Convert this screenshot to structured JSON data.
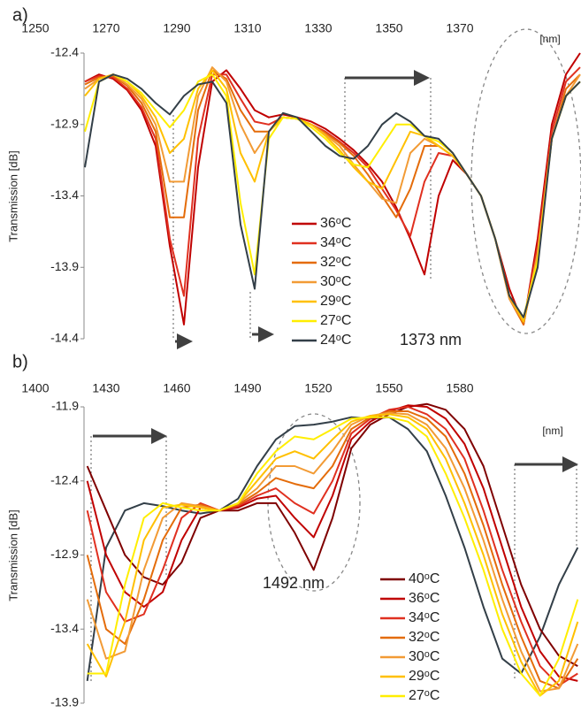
{
  "chart_data": [
    {
      "type": "line",
      "panel_label": "a)",
      "xlabel": "[nm]",
      "ylabel": "Transmission [dB]",
      "annotation": "1373 nm",
      "xlim": [
        1250,
        1404
      ],
      "xticks": [
        1250,
        1270,
        1290,
        1310,
        1330,
        1350,
        1370
      ],
      "ylim": [
        -14.4,
        -12.4
      ],
      "yticks": [
        -12.4,
        -12.9,
        -13.4,
        -13.9,
        -14.4
      ],
      "x": [
        1264,
        1268,
        1272,
        1276,
        1280,
        1284,
        1288,
        1292,
        1296,
        1300,
        1304,
        1308,
        1312,
        1316,
        1320,
        1324,
        1328,
        1332,
        1336,
        1340,
        1344,
        1348,
        1352,
        1356,
        1360,
        1364,
        1368,
        1372,
        1376,
        1380,
        1384,
        1388,
        1392,
        1396,
        1400,
        1404
      ],
      "series": [
        {
          "name": "36ᵒC",
          "color": "#c00000",
          "values": [
            -12.6,
            -12.55,
            -12.58,
            -12.66,
            -12.8,
            -13.05,
            -13.75,
            -14.3,
            -13.2,
            -12.6,
            -12.52,
            -12.65,
            -12.8,
            -12.85,
            -12.83,
            -12.85,
            -12.88,
            -12.93,
            -13.0,
            -13.08,
            -13.18,
            -13.3,
            -13.48,
            -13.7,
            -13.95,
            -13.4,
            -13.15,
            -13.25,
            -13.4,
            -13.7,
            -14.05,
            -14.3,
            -13.7,
            -12.9,
            -12.55,
            -12.4
          ]
        },
        {
          "name": "34ᵒC",
          "color": "#e03020",
          "values": [
            -12.6,
            -12.56,
            -12.57,
            -12.65,
            -12.78,
            -13.0,
            -13.7,
            -14.1,
            -13.0,
            -12.55,
            -12.55,
            -12.72,
            -12.88,
            -12.9,
            -12.85,
            -12.86,
            -12.9,
            -12.95,
            -13.02,
            -13.1,
            -13.2,
            -13.35,
            -13.5,
            -13.68,
            -13.3,
            -13.1,
            -13.12,
            -13.25,
            -13.4,
            -13.7,
            -14.1,
            -14.3,
            -13.75,
            -12.95,
            -12.6,
            -12.5
          ]
        },
        {
          "name": "32ᵒC",
          "color": "#e46c0a",
          "values": [
            -12.62,
            -12.57,
            -12.56,
            -12.63,
            -12.75,
            -12.95,
            -13.55,
            -13.55,
            -12.8,
            -12.52,
            -12.58,
            -12.8,
            -12.95,
            -12.95,
            -12.85,
            -12.86,
            -12.9,
            -12.96,
            -13.03,
            -13.12,
            -13.25,
            -13.4,
            -13.55,
            -13.35,
            -13.05,
            -13.05,
            -13.12,
            -13.25,
            -13.4,
            -13.7,
            -14.12,
            -14.3,
            -13.8,
            -13.0,
            -12.65,
            -12.55
          ]
        },
        {
          "name": "30ᵒC",
          "color": "#f29b35",
          "values": [
            -12.65,
            -12.58,
            -12.55,
            -12.62,
            -12.72,
            -12.9,
            -13.3,
            -13.3,
            -12.7,
            -12.5,
            -12.6,
            -12.9,
            -13.1,
            -12.95,
            -12.85,
            -12.86,
            -12.9,
            -12.97,
            -13.05,
            -13.18,
            -13.3,
            -13.42,
            -13.45,
            -13.1,
            -13.0,
            -13.05,
            -13.12,
            -13.25,
            -13.4,
            -13.7,
            -14.12,
            -14.28,
            -13.8,
            -13.0,
            -12.7,
            -12.55
          ]
        },
        {
          "name": "29ᵒC",
          "color": "#ffc000",
          "values": [
            -12.7,
            -12.58,
            -12.55,
            -12.6,
            -12.7,
            -12.85,
            -13.1,
            -13.0,
            -12.65,
            -12.52,
            -12.65,
            -13.1,
            -13.3,
            -12.95,
            -12.85,
            -12.86,
            -12.9,
            -12.98,
            -13.08,
            -13.2,
            -13.3,
            -13.35,
            -13.15,
            -12.95,
            -12.98,
            -13.05,
            -13.12,
            -13.25,
            -13.4,
            -13.7,
            -14.1,
            -14.28,
            -13.85,
            -13.0,
            -12.7,
            -12.6
          ]
        },
        {
          "name": "27ᵒC",
          "color": "#ffee00",
          "values": [
            -12.95,
            -12.6,
            -12.55,
            -12.6,
            -12.68,
            -12.8,
            -12.92,
            -12.8,
            -12.6,
            -12.55,
            -12.7,
            -13.45,
            -13.95,
            -13.0,
            -12.85,
            -12.86,
            -12.92,
            -13.0,
            -13.1,
            -13.18,
            -13.2,
            -13.05,
            -12.9,
            -12.9,
            -12.98,
            -13.02,
            -13.1,
            -13.25,
            -13.4,
            -13.7,
            -14.1,
            -14.25,
            -13.85,
            -13.0,
            -12.7,
            -12.6
          ]
        },
        {
          "name": "24ᵒC",
          "color": "#333f48",
          "values": [
            -13.2,
            -12.6,
            -12.55,
            -12.58,
            -12.65,
            -12.75,
            -12.83,
            -12.7,
            -12.62,
            -12.6,
            -12.75,
            -13.6,
            -14.05,
            -12.95,
            -12.82,
            -12.85,
            -12.95,
            -13.05,
            -13.12,
            -13.14,
            -13.05,
            -12.9,
            -12.82,
            -12.88,
            -12.98,
            -13.0,
            -13.1,
            -13.25,
            -13.4,
            -13.7,
            -14.1,
            -14.25,
            -13.9,
            -13.0,
            -12.7,
            -12.6
          ]
        }
      ]
    },
    {
      "type": "line",
      "panel_label": "b)",
      "xlabel": "[nm]",
      "ylabel": "Transmission [dB]",
      "annotation": "1492 nm",
      "xlim": [
        1400,
        1631
      ],
      "xticks": [
        1400,
        1430,
        1460,
        1490,
        1520,
        1550,
        1580
      ],
      "ylim": [
        -13.9,
        -11.9
      ],
      "yticks": [
        -11.9,
        -12.4,
        -12.9,
        -13.4,
        -13.9
      ],
      "x": [
        1422,
        1430,
        1438,
        1446,
        1454,
        1462,
        1470,
        1478,
        1486,
        1494,
        1502,
        1510,
        1518,
        1526,
        1534,
        1542,
        1550,
        1558,
        1566,
        1574,
        1582,
        1590,
        1598,
        1606,
        1614,
        1622,
        1630
      ],
      "series": [
        {
          "color": "#333f48",
          "values": [
            -13.75,
            -12.85,
            -12.6,
            -12.55,
            -12.57,
            -12.6,
            -12.62,
            -12.6,
            -12.52,
            -12.3,
            -12.12,
            -12.03,
            -12.02,
            -12.0,
            -11.97,
            -11.98,
            -11.97,
            -12.05,
            -12.2,
            -12.5,
            -12.85,
            -13.25,
            -13.6,
            -13.7,
            -13.45,
            -13.1,
            -12.85
          ]
        },
        {
          "name": "40ᵒC",
          "color": "#7f0000",
          "values": [
            -12.3,
            -12.6,
            -12.9,
            -13.05,
            -13.1,
            -12.95,
            -12.65,
            -12.6,
            -12.6,
            -12.55,
            -12.55,
            -12.75,
            -13.0,
            -12.65,
            -12.18,
            -12.02,
            -11.95,
            -11.9,
            -11.88,
            -11.92,
            -12.05,
            -12.3,
            -12.7,
            -13.1,
            -13.4,
            -13.58,
            -13.65
          ]
        },
        {
          "name": "36ᵒC",
          "color": "#c00000",
          "values": [
            -12.4,
            -12.9,
            -13.15,
            -13.25,
            -13.15,
            -12.8,
            -12.58,
            -12.6,
            -12.58,
            -12.52,
            -12.5,
            -12.65,
            -12.78,
            -12.5,
            -12.12,
            -12.0,
            -11.93,
            -11.89,
            -11.9,
            -11.98,
            -12.15,
            -12.45,
            -12.85,
            -13.25,
            -13.55,
            -13.72,
            -13.75
          ]
        },
        {
          "name": "34ᵒC",
          "color": "#e03020",
          "values": [
            -12.6,
            -13.15,
            -13.35,
            -13.3,
            -13.0,
            -12.65,
            -12.55,
            -12.6,
            -12.57,
            -12.5,
            -12.45,
            -12.55,
            -12.62,
            -12.4,
            -12.08,
            -11.98,
            -11.92,
            -11.9,
            -11.95,
            -12.05,
            -12.25,
            -12.6,
            -13.0,
            -13.35,
            -13.65,
            -13.78,
            -13.7
          ]
        },
        {
          "name": "32ᵒC",
          "color": "#e46c0a",
          "values": [
            -12.9,
            -13.4,
            -13.5,
            -13.2,
            -12.8,
            -12.58,
            -12.56,
            -12.6,
            -12.56,
            -12.48,
            -12.38,
            -12.42,
            -12.45,
            -12.3,
            -12.05,
            -11.97,
            -11.93,
            -11.93,
            -11.98,
            -12.1,
            -12.35,
            -12.7,
            -13.1,
            -13.45,
            -13.75,
            -13.8,
            -13.6
          ]
        },
        {
          "name": "30ᵒC",
          "color": "#f29b35",
          "values": [
            -13.2,
            -13.6,
            -13.55,
            -13.0,
            -12.65,
            -12.55,
            -12.57,
            -12.6,
            -12.55,
            -12.45,
            -12.3,
            -12.3,
            -12.35,
            -12.2,
            -12.02,
            -11.96,
            -11.94,
            -11.95,
            -12.02,
            -12.18,
            -12.45,
            -12.8,
            -13.2,
            -13.55,
            -13.82,
            -13.8,
            -13.5
          ]
        },
        {
          "name": "29ᵒC",
          "color": "#ffc000",
          "values": [
            -13.5,
            -13.72,
            -13.35,
            -12.8,
            -12.58,
            -12.56,
            -12.58,
            -12.6,
            -12.55,
            -12.4,
            -12.25,
            -12.2,
            -12.25,
            -12.12,
            -12.0,
            -11.96,
            -11.95,
            -11.97,
            -12.05,
            -12.25,
            -12.55,
            -12.9,
            -13.3,
            -13.62,
            -13.85,
            -13.75,
            -13.35
          ]
        },
        {
          "name": "27ᵒC",
          "color": "#ffee00",
          "values": [
            -13.7,
            -13.7,
            -13.1,
            -12.65,
            -12.55,
            -12.58,
            -12.6,
            -12.6,
            -12.55,
            -12.35,
            -12.2,
            -12.1,
            -12.12,
            -12.05,
            -11.98,
            -11.97,
            -11.97,
            -12.0,
            -12.1,
            -12.35,
            -12.65,
            -13.0,
            -13.4,
            -13.7,
            -13.85,
            -13.6,
            -13.2
          ]
        }
      ]
    }
  ]
}
